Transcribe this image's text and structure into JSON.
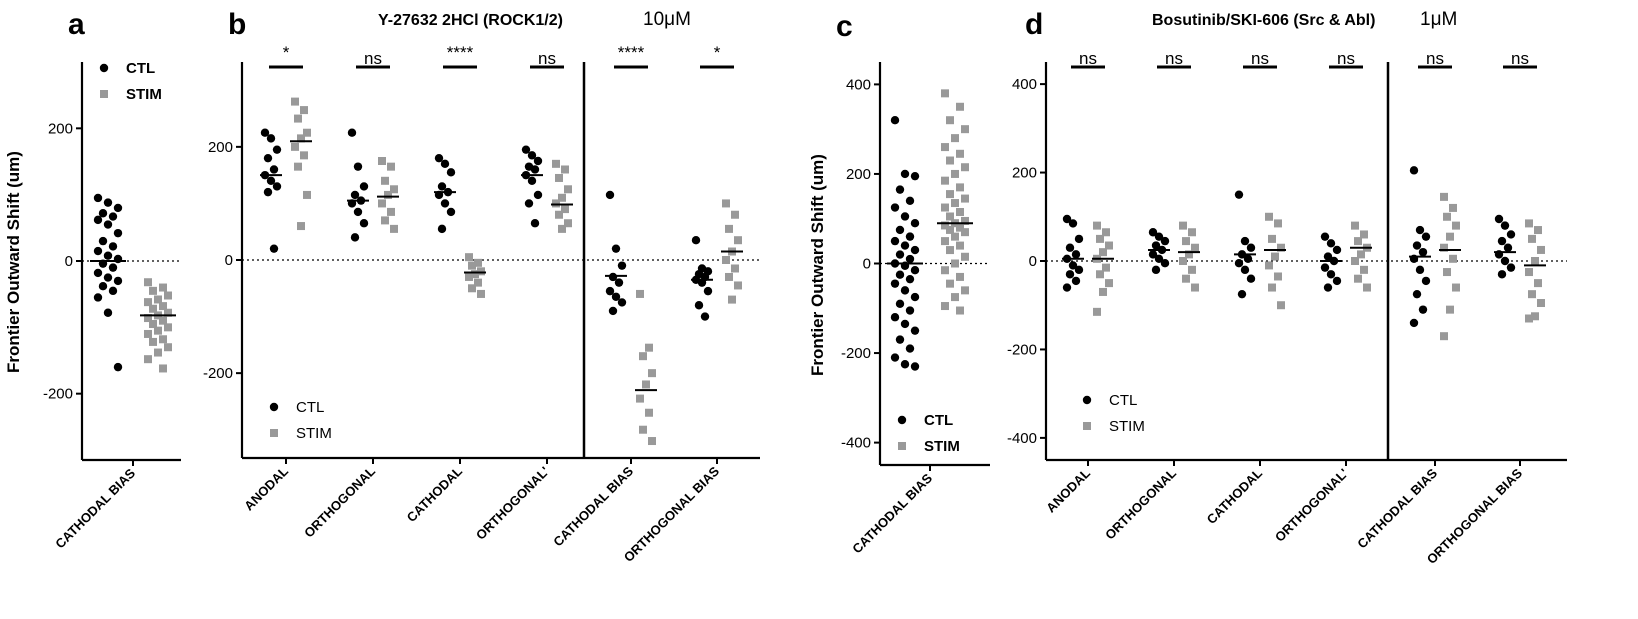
{
  "labels": {
    "a": "a",
    "b": "b",
    "c": "c",
    "d": "d"
  },
  "colors": {
    "ctl": "#000000",
    "stim": "#999999"
  },
  "chart_data": [
    {
      "id": "a",
      "type": "scatter",
      "ylabel": "Frontier Outward Shift (um)",
      "ylim": [
        -300,
        300
      ],
      "yticks": [
        -200,
        0,
        200
      ],
      "categories": [
        "CATHODAL BIAS"
      ],
      "legend": {
        "ctl": "CTL",
        "stim": "STIM",
        "position": "top-left",
        "bold": true
      },
      "groups": [
        {
          "ctl": [
            95,
            88,
            80,
            72,
            67,
            62,
            55,
            42,
            30,
            22,
            15,
            8,
            3,
            -4,
            -10,
            -18,
            -25,
            -30,
            -38,
            -45,
            -55,
            -78,
            -160
          ],
          "stim": [
            -32,
            -40,
            -45,
            -52,
            -58,
            -62,
            -68,
            -72,
            -78,
            -82,
            -86,
            -90,
            -95,
            -100,
            -105,
            -110,
            -118,
            -122,
            -130,
            -138,
            -148,
            -162
          ],
          "ctl_mean": 0,
          "stim_mean": -82
        }
      ],
      "sig": []
    },
    {
      "id": "b",
      "type": "scatter",
      "title": "Y-27632 2HCl (ROCK1/2)",
      "dose": "10μM",
      "ylim": [
        -350,
        350
      ],
      "yticks": [
        -200,
        0,
        200
      ],
      "categories": [
        "ANODAL",
        "ORTHOGONAL",
        "CATHODAL",
        "ORTHOGONAL'",
        "CATHODAL BIAS",
        "ORTHOGONAL BIAS"
      ],
      "divider_after": 4,
      "legend": {
        "ctl": "CTL",
        "stim": "STIM",
        "position": "bottom-left",
        "bold": false
      },
      "groups": [
        {
          "ctl": [
            225,
            215,
            195,
            180,
            160,
            150,
            140,
            130,
            120,
            20
          ],
          "stim": [
            280,
            265,
            250,
            225,
            215,
            200,
            185,
            165,
            115,
            60
          ],
          "ctl_mean": 150,
          "stim_mean": 210
        },
        {
          "ctl": [
            225,
            165,
            130,
            115,
            105,
            100,
            85,
            65,
            40
          ],
          "stim": [
            175,
            165,
            140,
            125,
            115,
            100,
            85,
            70,
            55
          ],
          "ctl_mean": 105,
          "stim_mean": 112
        },
        {
          "ctl": [
            180,
            170,
            155,
            130,
            120,
            115,
            100,
            85,
            55
          ],
          "stim": [
            5,
            -5,
            -10,
            -20,
            -25,
            -30,
            -40,
            -50,
            -60
          ],
          "ctl_mean": 120,
          "stim_mean": -22
        },
        {
          "ctl": [
            195,
            185,
            175,
            165,
            160,
            150,
            140,
            115,
            100,
            65
          ],
          "stim": [
            170,
            160,
            145,
            125,
            110,
            100,
            90,
            80,
            65,
            55
          ],
          "ctl_mean": 150,
          "stim_mean": 98
        },
        {
          "ctl": [
            115,
            20,
            -10,
            -30,
            -40,
            -55,
            -65,
            -75,
            -90
          ],
          "stim": [
            -60,
            -155,
            -170,
            -200,
            -220,
            -245,
            -270,
            -300,
            -320
          ],
          "ctl_mean": -28,
          "stim_mean": -230
        },
        {
          "ctl": [
            35,
            -15,
            -20,
            -25,
            -30,
            -35,
            -40,
            -55,
            -80,
            -100
          ],
          "stim": [
            100,
            80,
            55,
            35,
            15,
            0,
            -15,
            -30,
            -45,
            -70
          ],
          "ctl_mean": -35,
          "stim_mean": 15
        }
      ],
      "sig": [
        "*",
        "ns",
        "****",
        "ns",
        "****",
        "*"
      ]
    },
    {
      "id": "c",
      "type": "scatter",
      "ylabel": "Frontier Outward Shift (um)",
      "ylim": [
        -450,
        450
      ],
      "yticks": [
        -400,
        -200,
        0,
        200,
        400
      ],
      "categories": [
        "CATHODAL BIAS"
      ],
      "legend": {
        "ctl": "CTL",
        "stim": "STIM",
        "position": "bottom-left",
        "bold": true
      },
      "groups": [
        {
          "ctl": [
            320,
            200,
            195,
            165,
            140,
            125,
            105,
            90,
            75,
            60,
            50,
            40,
            30,
            20,
            10,
            0,
            -5,
            -15,
            -25,
            -35,
            -45,
            -60,
            -75,
            -90,
            -105,
            -120,
            -135,
            -150,
            -170,
            -190,
            -210,
            -225,
            -230
          ],
          "stim": [
            380,
            350,
            320,
            300,
            280,
            260,
            245,
            230,
            215,
            200,
            185,
            170,
            155,
            145,
            135,
            125,
            115,
            105,
            95,
            90,
            85,
            80,
            75,
            70,
            60,
            50,
            40,
            30,
            15,
            0,
            -15,
            -30,
            -45,
            -60,
            -75,
            -95,
            -105
          ],
          "ctl_mean": 0,
          "stim_mean": 90
        }
      ],
      "sig": []
    },
    {
      "id": "d",
      "type": "scatter",
      "title": "Bosutinib/SKI-606 (Src & Abl)",
      "dose": "1μM",
      "ylim": [
        -450,
        450
      ],
      "yticks": [
        -400,
        -200,
        0,
        200,
        400
      ],
      "categories": [
        "ANODAL",
        "ORTHOGONAL",
        "CATHODAL",
        "ORTHOGONAL'",
        "CATHODAL BIAS",
        "ORTHOGONAL BIAS"
      ],
      "divider_after": 4,
      "legend": {
        "ctl": "CTL",
        "stim": "STIM",
        "position": "bottom-left",
        "bold": false
      },
      "groups": [
        {
          "ctl": [
            95,
            85,
            50,
            30,
            15,
            5,
            -10,
            -20,
            -30,
            -45,
            -60
          ],
          "stim": [
            80,
            65,
            50,
            35,
            20,
            5,
            -15,
            -30,
            -50,
            -70,
            -115
          ],
          "ctl_mean": 5,
          "stim_mean": 5
        },
        {
          "ctl": [
            65,
            55,
            45,
            35,
            25,
            15,
            5,
            -5,
            -20
          ],
          "stim": [
            80,
            65,
            45,
            30,
            15,
            0,
            -20,
            -40,
            -60
          ],
          "ctl_mean": 25,
          "stim_mean": 20
        },
        {
          "ctl": [
            150,
            45,
            30,
            15,
            5,
            -5,
            -20,
            -40,
            -75
          ],
          "stim": [
            100,
            85,
            50,
            30,
            10,
            -10,
            -35,
            -60,
            -100
          ],
          "ctl_mean": 15,
          "stim_mean": 25
        },
        {
          "ctl": [
            55,
            40,
            25,
            10,
            0,
            -15,
            -30,
            -45,
            -60
          ],
          "stim": [
            80,
            60,
            45,
            30,
            15,
            0,
            -20,
            -40,
            -60
          ],
          "ctl_mean": 0,
          "stim_mean": 30
        },
        {
          "ctl": [
            205,
            70,
            55,
            35,
            20,
            5,
            -20,
            -45,
            -75,
            -110,
            -140
          ],
          "stim": [
            145,
            120,
            100,
            80,
            55,
            30,
            5,
            -25,
            -60,
            -110,
            -170
          ],
          "ctl_mean": 10,
          "stim_mean": 25
        },
        {
          "ctl": [
            95,
            80,
            60,
            45,
            30,
            15,
            0,
            -15,
            -30
          ],
          "stim": [
            85,
            70,
            50,
            25,
            0,
            -25,
            -50,
            -75,
            -95,
            -125,
            -130
          ],
          "ctl_mean": 20,
          "stim_mean": -10
        }
      ],
      "sig": [
        "ns",
        "ns",
        "ns",
        "ns",
        "ns",
        "ns"
      ]
    }
  ]
}
